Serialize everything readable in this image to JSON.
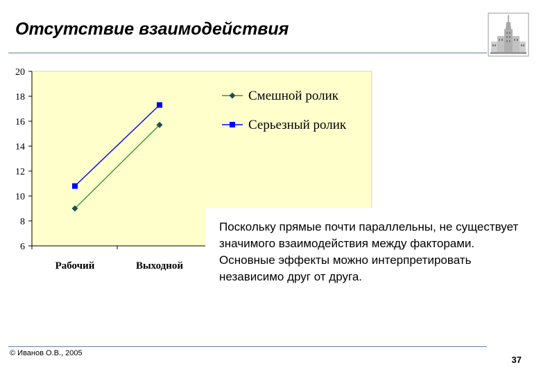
{
  "slide": {
    "title": "Отсутствие взаимодействия",
    "note": "Поскольку прямые почти параллельны, не существует значимого взаимодействия между факторами. Основные эффекты можно интерпретировать независимо друг от друга.",
    "copyright": "© Иванов О.В., 2005",
    "page_number": "37"
  },
  "colors": {
    "plot_background": "#ffffcc",
    "series_funny": "#339933",
    "series_funny_marker": "#1f4f4f",
    "series_serious": "#0000ff",
    "rule": "#6a7fa0"
  },
  "chart_data": {
    "type": "line",
    "title": "",
    "xlabel": "",
    "ylabel": "",
    "categories": [
      "Рабочий",
      "Выходной"
    ],
    "series": [
      {
        "name": "Смешной ролик",
        "values": [
          9,
          15.7
        ],
        "marker": "diamond"
      },
      {
        "name": "Серьезный ролик",
        "values": [
          10.8,
          17.3
        ],
        "marker": "square"
      }
    ],
    "ylim": [
      6,
      20
    ],
    "yticks": [
      6,
      8,
      10,
      12,
      14,
      16,
      18,
      20
    ],
    "grid": false,
    "legend_position": "top-right"
  }
}
